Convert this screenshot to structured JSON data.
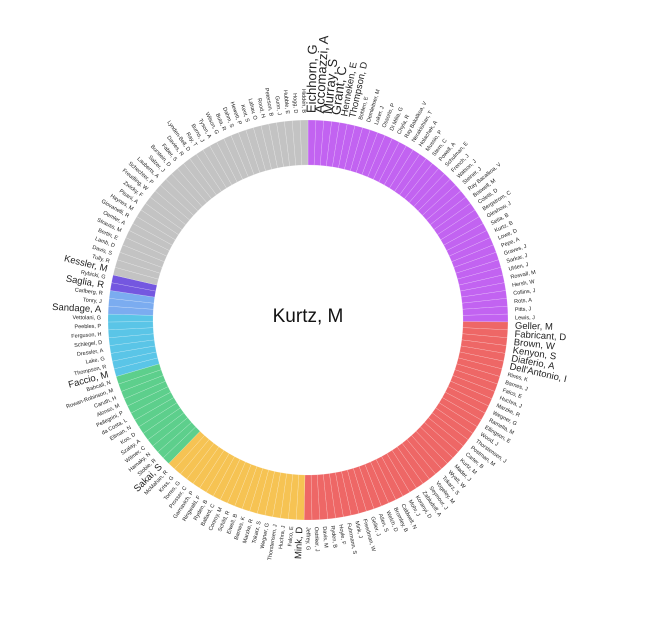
{
  "chart_data": {
    "type": "sunburst",
    "center": "Kurtz, M",
    "groups": [
      {
        "color": "#c263f1",
        "names": [
          "Eichhorn, G",
          "Accomazzi, A",
          "Murray, S",
          "Grant, C",
          "Henneken, E",
          "Thompson, D",
          "Bohlen, E",
          "Demleitner, M",
          "Luker, J",
          "Ossorio, P",
          "Di Milia, G",
          "Chyla, R",
          "Ray Bakalkoa, V",
          "Nerakishian, T",
          "Holachek, A",
          "Mussio, P",
          "Stern, C",
          "Powell, A",
          "Schulman, E",
          "French, J",
          "Watson, J",
          "Steiner, J",
          "Ray Bacalkoa, V",
          "Boswell, M",
          "Coletti, D",
          "Bergstrom, C",
          "Gleshow, J",
          "Setia, B",
          "Kurtz, B",
          "Lowe, D",
          "Pepe, A",
          "Graves, J",
          "Sarkar, J",
          "Uhlen, J",
          "Rosvall, M",
          "Hersh, W",
          "Collins, J",
          "Rots, A",
          "Pitts, J",
          "Lewis, J"
        ]
      },
      {
        "color": "#ee6766",
        "names": [
          "Geller, M",
          "Fabricant, D",
          "Brown, W",
          "Kenyon, S",
          "Diaferio, A",
          "Dell'Antonio, I",
          "Rines, K",
          "Barnes, J",
          "Falco, E",
          "Huchra, J",
          "Marzke, R",
          "Wegner, G",
          "Ramella, M",
          "Ellingson, E",
          "Wood, J",
          "Thorstensen, J",
          "Postman, M",
          "Carter, B",
          "Kurtz, M",
          "Mader, J",
          "Wyatt, W",
          "Tokarz, S",
          "Vogeley, M",
          "Seymour, J",
          "Zabludoff, A",
          "Koranyi, D",
          "Mohr, J",
          "Caldwell, N",
          "Bromley, B",
          "Welch, D",
          "Allen, S",
          "Geller, J",
          "Freedman, W",
          "Mink, J",
          "Fuhrmann, S",
          "Hoyle, F",
          "Ryden, B",
          "Davis, M",
          "Ostriker, J",
          "Jeffrey, G"
        ]
      },
      {
        "color": "#f6c353",
        "names": [
          "Mink, D",
          "Falco, E",
          "Huchra, J",
          "Thorstensen, J",
          "Wegner, G",
          "Tokarz, S",
          "Marzke, R",
          "Barnes, K",
          "Elwell, B",
          "Schild, R",
          "Conroy, M",
          "Ballard, C",
          "Ryden, B",
          "Ringwald, F",
          "Garnavich, P",
          "Prosser, C",
          "Torres, G",
          "Kriss, G",
          "McMahan, R"
        ]
      },
      {
        "color": "#5dcf8c",
        "names": [
          "Sakai, S",
          "Stobie, R",
          "Hamaky, N",
          "Wilmer, C",
          "Szalay, A",
          "Koo, D",
          "Ellman, N",
          "da Costa, L",
          "Pellegrini, P",
          "Alonso, M",
          "Caruth, H",
          "Rowan-Robinson, M",
          "Bahcall, N"
        ]
      },
      {
        "color": "#5ac5e7",
        "names": [
          "Faccio, M",
          "Thompson, R",
          "Lake, G",
          "Dressler, A",
          "Schlegel, D",
          "Ferguson, H",
          "Peebles, P",
          "Vettolani, G"
        ]
      },
      {
        "color": "#7bacf0",
        "names": [
          "Sandage, A",
          "Tonry, J",
          "Carlberg, R"
        ]
      },
      {
        "color": "#7457e0",
        "names": [
          "Saglia, R",
          "Rybicki, G"
        ]
      },
      {
        "color": "#c3c3c3",
        "names": [
          "Kessler, M",
          "Tully, R",
          "Davis, S",
          "Lamb, D",
          "Bertin, E",
          "Strauss, M",
          "Oemler, A",
          "Giovanelli, R",
          "Haynes, M",
          "Pisani, A",
          "Zwicky, F",
          "Freudling, W",
          "Schechter, P",
          "Lauberts, A",
          "Salzer, J",
          "Burstein, D",
          "Faber, S",
          "Davies, R",
          "Lynden-Bell, D",
          "Ray, T",
          "Burns, J",
          "Tyson, A",
          "Wilson, G",
          "Buta, R",
          "Dahm, S",
          "Hewett, P",
          "Kent, S",
          "Lahav, O",
          "Rood, H",
          "Peterson, B",
          "Gunn, J",
          "Hubble, E",
          "Hogg, D",
          "Hidden, B"
        ]
      }
    ]
  }
}
